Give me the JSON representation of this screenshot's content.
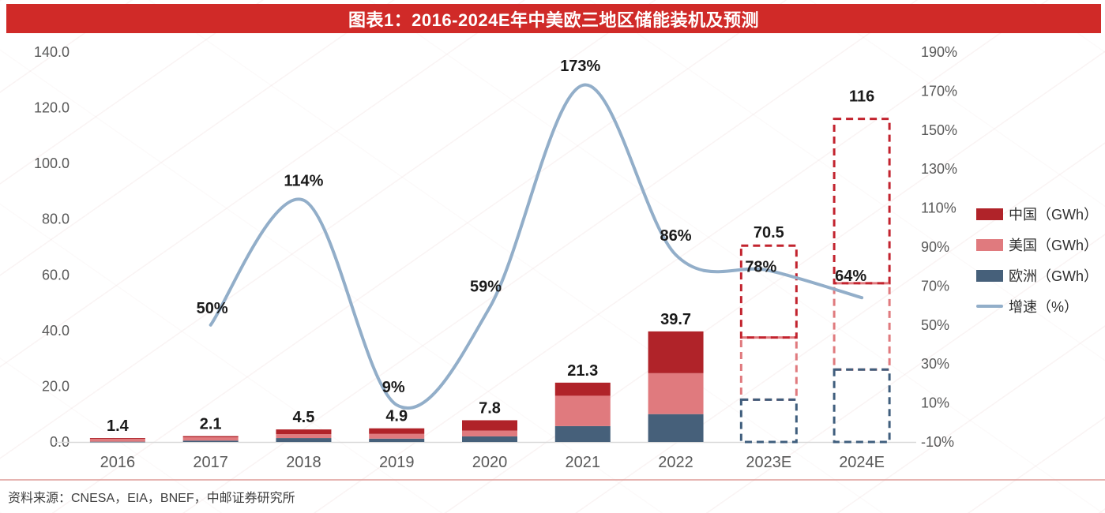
{
  "title": "图表1：2016-2024E年中美欧三地区储能装机及预测",
  "source": "资料来源：CNESA，EIA，BNEF，中邮证券研究所",
  "colors": {
    "banner": "#d02a28",
    "china": "#b02329",
    "us": "#e07a7e",
    "europe": "#46607a",
    "line": "#92aec9",
    "forecast_red": "#c2232e",
    "forecast_us": "#e07a7e",
    "forecast_europe": "#3f5e7d",
    "axis_text": "#595959",
    "value_label": "#1a1a1a",
    "value_label_red": "#c2232e",
    "baseline": "#d9d9d9",
    "separator": "#dd9b97"
  },
  "legend": [
    {
      "label": "中国（GWh）",
      "swatch": "bar",
      "color_key": "china"
    },
    {
      "label": "美国（GWh）",
      "swatch": "bar",
      "color_key": "us"
    },
    {
      "label": "欧洲（GWh）",
      "swatch": "bar",
      "color_key": "europe"
    },
    {
      "label": "增速（%）",
      "swatch": "line",
      "color_key": "line"
    }
  ],
  "chart_data": {
    "type": "bar",
    "subtype": "stacked-bar-with-line",
    "title": "图表1：2016-2024E年中美欧三地区储能装机及预测",
    "categories": [
      "2016",
      "2017",
      "2018",
      "2019",
      "2020",
      "2021",
      "2022",
      "2023E",
      "2024E"
    ],
    "series": [
      {
        "name": "中国（GWh）",
        "key": "china",
        "values": [
          0.3,
          0.4,
          1.7,
          2.0,
          3.7,
          4.7,
          15.0,
          33.0,
          59.0
        ]
      },
      {
        "name": "美国（GWh）",
        "key": "us",
        "values": [
          1.0,
          1.2,
          1.4,
          1.7,
          2.1,
          10.9,
          14.7,
          22.3,
          31.0
        ]
      },
      {
        "name": "欧洲（GWh）",
        "key": "europe",
        "values": [
          0.1,
          0.5,
          1.4,
          1.2,
          2.0,
          5.7,
          10.0,
          15.2,
          26.0
        ]
      }
    ],
    "totals_labels": [
      "1.4",
      "2.1",
      "4.5",
      "4.9",
      "7.8",
      "21.3",
      "39.7",
      "70.5",
      "116"
    ],
    "forecast_from_index": 7,
    "line_series": {
      "name": "增速（%）",
      "categories": [
        "2017",
        "2018",
        "2019",
        "2020",
        "2021",
        "2022",
        "2023E",
        "2024E"
      ],
      "values": [
        50,
        114,
        9,
        59,
        173,
        86,
        78,
        64
      ],
      "labels": [
        "50%",
        "114%",
        "9%",
        "59%",
        "173%",
        "86%",
        "78%",
        "64%"
      ]
    },
    "left_axis": {
      "unit": "GWh",
      "min": 0,
      "max": 140,
      "step": 20,
      "tick_labels": [
        "0.0",
        "20.0",
        "40.0",
        "60.0",
        "80.0",
        "100.0",
        "120.0",
        "140.0"
      ]
    },
    "right_axis": {
      "unit": "%",
      "min": -10,
      "max": 190,
      "step": 20,
      "tick_labels": [
        "-10%",
        "10%",
        "30%",
        "50%",
        "70%",
        "90%",
        "110%",
        "130%",
        "150%",
        "170%",
        "190%"
      ]
    },
    "grid": false,
    "legend_position": "right"
  }
}
